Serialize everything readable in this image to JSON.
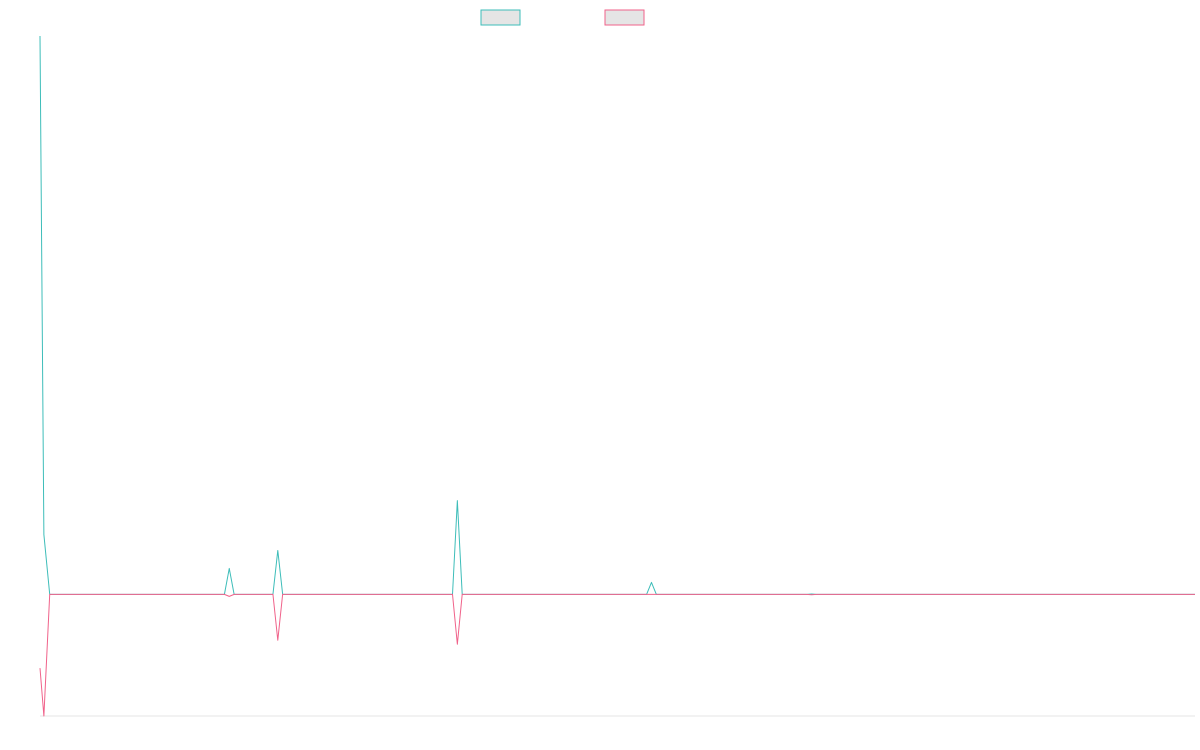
{
  "chart_data": {
    "type": "line",
    "x": [
      0,
      0.4,
      1,
      2,
      10,
      19,
      19.5,
      20,
      24,
      24.5,
      25,
      34,
      42.5,
      43,
      43.5,
      55,
      62.5,
      63,
      63.5,
      70,
      79,
      79.5,
      80,
      100,
      119
    ],
    "series": [
      {
        "color": "#3dbdb9",
        "values": [
          1400,
          150,
          0,
          0,
          0,
          0,
          65,
          0,
          0,
          110,
          0,
          0,
          0,
          235,
          0,
          0,
          0,
          30,
          0,
          0,
          0,
          1,
          0,
          0,
          0
        ]
      },
      {
        "color": "#f0628a",
        "values": [
          -185,
          -305,
          0,
          0,
          0,
          0,
          -5,
          0,
          0,
          -115,
          0,
          0,
          0,
          -125,
          0,
          0,
          0,
          0,
          0,
          0,
          0,
          -1,
          0,
          0,
          0
        ]
      }
    ],
    "xlim": [
      0,
      119
    ],
    "ylim": [
      -305,
      1400
    ],
    "grid": false,
    "legend": "top-center"
  }
}
